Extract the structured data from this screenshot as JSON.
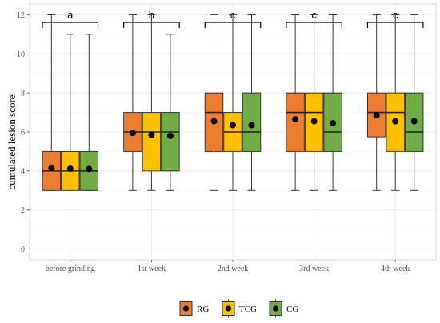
{
  "chart_data": {
    "type": "box",
    "title": "",
    "xlabel": "",
    "ylabel": "cumulated lesion score",
    "ylim": [
      -0.55,
      12.55
    ],
    "yticks": [
      0,
      2,
      4,
      6,
      8,
      10,
      12
    ],
    "grid": true,
    "legend_position": "bottom",
    "categories": [
      "before grinding",
      "1st week",
      "2nd week",
      "3rd week",
      "4th week"
    ],
    "significance_letters": [
      "a",
      "b",
      "c",
      "c",
      "c"
    ],
    "series": [
      {
        "name": "RG",
        "color": "#ED7D31",
        "boxes": [
          {
            "min": 3,
            "q1": 3,
            "median": 4,
            "q3": 5,
            "max": 12,
            "mean": 4.15
          },
          {
            "min": 3,
            "q1": 5,
            "median": 6,
            "q3": 7,
            "max": 12,
            "mean": 5.95
          },
          {
            "min": 3,
            "q1": 5,
            "median": 7,
            "q3": 8,
            "max": 12,
            "mean": 6.55
          },
          {
            "min": 3,
            "q1": 5,
            "median": 7,
            "q3": 8,
            "max": 12,
            "mean": 6.65
          },
          {
            "min": 3,
            "q1": 5.75,
            "median": 7,
            "q3": 8,
            "max": 12,
            "mean": 6.85
          }
        ]
      },
      {
        "name": "TCG",
        "color": "#FFC000",
        "boxes": [
          {
            "min": 3,
            "q1": 3,
            "median": 4,
            "q3": 5,
            "max": 11,
            "mean": 4.12
          },
          {
            "min": 3,
            "q1": 4,
            "median": 6,
            "q3": 7,
            "max": 12,
            "mean": 5.85
          },
          {
            "min": 3,
            "q1": 5,
            "median": 6,
            "q3": 7,
            "max": 12,
            "mean": 6.35
          },
          {
            "min": 3,
            "q1": 5,
            "median": 7,
            "q3": 8,
            "max": 12,
            "mean": 6.55
          },
          {
            "min": 3,
            "q1": 5,
            "median": 7,
            "q3": 8,
            "max": 12,
            "mean": 6.55
          }
        ]
      },
      {
        "name": "CG",
        "color": "#70AD47",
        "boxes": [
          {
            "min": 3,
            "q1": 3,
            "median": 4,
            "q3": 5,
            "max": 11,
            "mean": 4.1
          },
          {
            "min": 3,
            "q1": 4,
            "median": 6,
            "q3": 7,
            "max": 11,
            "mean": 5.8
          },
          {
            "min": 3,
            "q1": 5,
            "median": 6,
            "q3": 8,
            "max": 12,
            "mean": 6.35
          },
          {
            "min": 3,
            "q1": 5,
            "median": 6,
            "q3": 8,
            "max": 12,
            "mean": 6.45
          },
          {
            "min": 3,
            "q1": 5,
            "median": 6,
            "q3": 8,
            "max": 12,
            "mean": 6.55
          }
        ]
      }
    ]
  }
}
